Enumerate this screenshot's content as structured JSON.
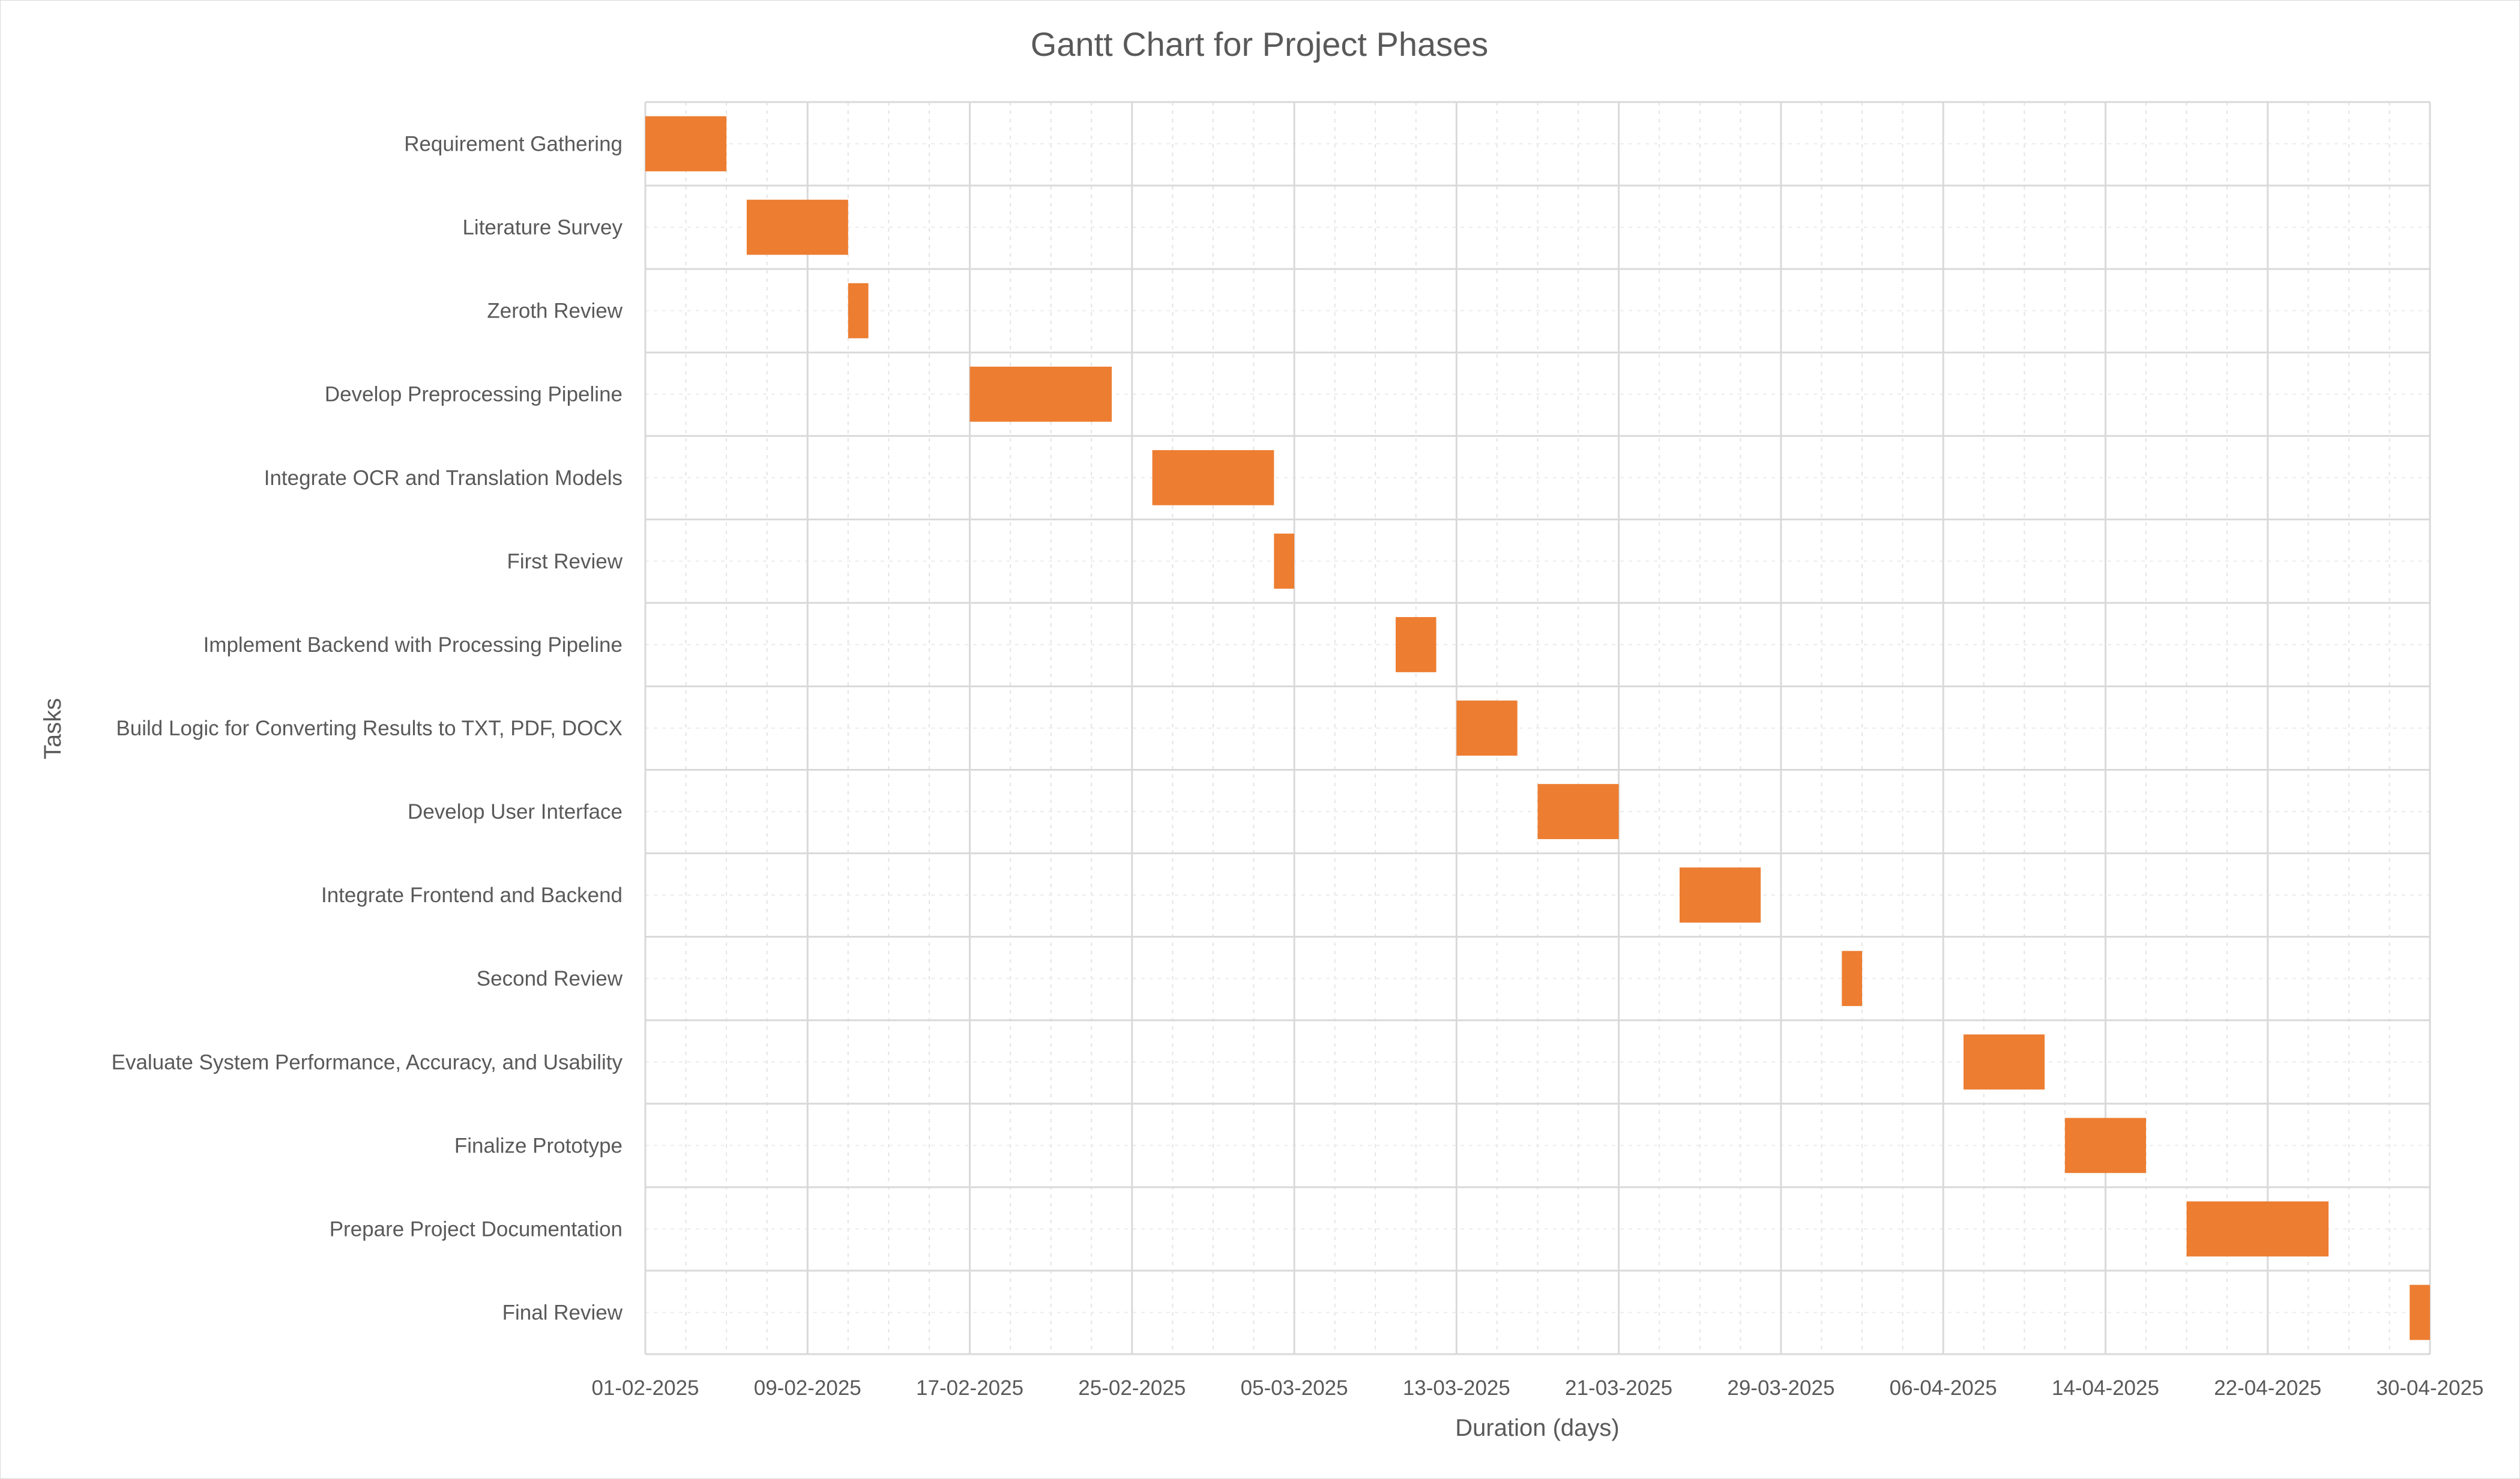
{
  "chart_data": {
    "type": "bar",
    "orientation": "horizontal",
    "subtype": "gantt",
    "title": "Gantt Chart for Project Phases",
    "xlabel": "Duration (days)",
    "ylabel": "Tasks",
    "xlim": [
      "2025-02-01",
      "2025-04-30"
    ],
    "x_ticks": [
      "01-02-2025",
      "09-02-2025",
      "17-02-2025",
      "25-02-2025",
      "05-03-2025",
      "13-03-2025",
      "21-03-2025",
      "29-03-2025",
      "06-04-2025",
      "14-04-2025",
      "22-04-2025",
      "30-04-2025"
    ],
    "grid": true,
    "bar_color": "#ED7D31",
    "tasks": [
      {
        "name": "Requirement Gathering",
        "start": "2025-02-01",
        "end": "2025-02-05"
      },
      {
        "name": "Literature Survey",
        "start": "2025-02-06",
        "end": "2025-02-11"
      },
      {
        "name": "Zeroth Review",
        "start": "2025-02-11",
        "end": "2025-02-12"
      },
      {
        "name": "Develop Preprocessing Pipeline",
        "start": "2025-02-17",
        "end": "2025-02-24"
      },
      {
        "name": "Integrate OCR and Translation Models",
        "start": "2025-02-26",
        "end": "2025-03-04"
      },
      {
        "name": "First Review",
        "start": "2025-03-04",
        "end": "2025-03-05"
      },
      {
        "name": "Implement Backend with Processing Pipeline",
        "start": "2025-03-10",
        "end": "2025-03-12"
      },
      {
        "name": "Build Logic for Converting Results to TXT, PDF, DOCX",
        "start": "2025-03-13",
        "end": "2025-03-16"
      },
      {
        "name": "Develop User Interface",
        "start": "2025-03-17",
        "end": "2025-03-21"
      },
      {
        "name": "Integrate Frontend and Backend",
        "start": "2025-03-24",
        "end": "2025-03-28"
      },
      {
        "name": "Second Review",
        "start": "2025-04-01",
        "end": "2025-04-02"
      },
      {
        "name": "Evaluate System Performance, Accuracy, and Usability",
        "start": "2025-04-07",
        "end": "2025-04-11"
      },
      {
        "name": "Finalize Prototype",
        "start": "2025-04-12",
        "end": "2025-04-16"
      },
      {
        "name": "Prepare Project Documentation",
        "start": "2025-04-18",
        "end": "2025-04-25"
      },
      {
        "name": "Final Review",
        "start": "2025-04-29",
        "end": "2025-04-30"
      }
    ]
  }
}
